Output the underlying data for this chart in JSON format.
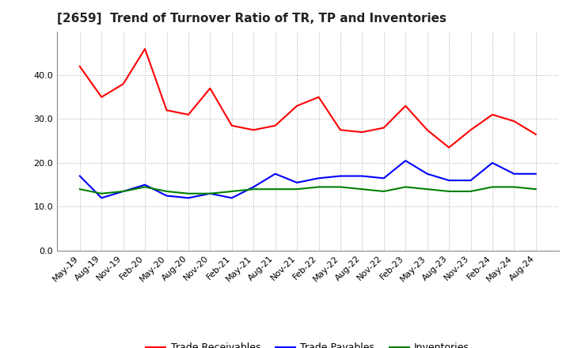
{
  "title": "[2659]  Trend of Turnover Ratio of TR, TP and Inventories",
  "x_labels": [
    "May-19",
    "Aug-19",
    "Nov-19",
    "Feb-20",
    "May-20",
    "Aug-20",
    "Nov-20",
    "Feb-21",
    "May-21",
    "Aug-21",
    "Nov-21",
    "Feb-22",
    "May-22",
    "Aug-22",
    "Nov-22",
    "Feb-23",
    "May-23",
    "Aug-23",
    "Nov-23",
    "Feb-24",
    "May-24",
    "Aug-24"
  ],
  "trade_receivables": [
    42.0,
    35.0,
    38.0,
    46.0,
    32.0,
    31.0,
    37.0,
    28.5,
    27.5,
    28.5,
    33.0,
    35.0,
    27.5,
    27.0,
    28.0,
    33.0,
    27.5,
    23.5,
    27.5,
    31.0,
    29.5,
    26.5
  ],
  "trade_payables": [
    17.0,
    12.0,
    13.5,
    15.0,
    12.5,
    12.0,
    13.0,
    12.0,
    14.5,
    17.5,
    15.5,
    16.5,
    17.0,
    17.0,
    16.5,
    20.5,
    17.5,
    16.0,
    16.0,
    20.0,
    17.5,
    17.5
  ],
  "inventories": [
    14.0,
    13.0,
    13.5,
    14.5,
    13.5,
    13.0,
    13.0,
    13.5,
    14.0,
    14.0,
    14.0,
    14.5,
    14.5,
    14.0,
    13.5,
    14.5,
    14.0,
    13.5,
    13.5,
    14.5,
    14.5,
    14.0
  ],
  "ylim": [
    0.0,
    50.0
  ],
  "yticks": [
    0.0,
    10.0,
    20.0,
    30.0,
    40.0
  ],
  "colors": {
    "trade_receivables": "#ff0000",
    "trade_payables": "#0000ff",
    "inventories": "#008000"
  },
  "background_color": "#ffffff",
  "grid_color": "#aaaaaa",
  "legend_labels": [
    "Trade Receivables",
    "Trade Payables",
    "Inventories"
  ],
  "title_fontsize": 11,
  "tick_fontsize": 8,
  "legend_fontsize": 9,
  "linewidth": 1.5
}
